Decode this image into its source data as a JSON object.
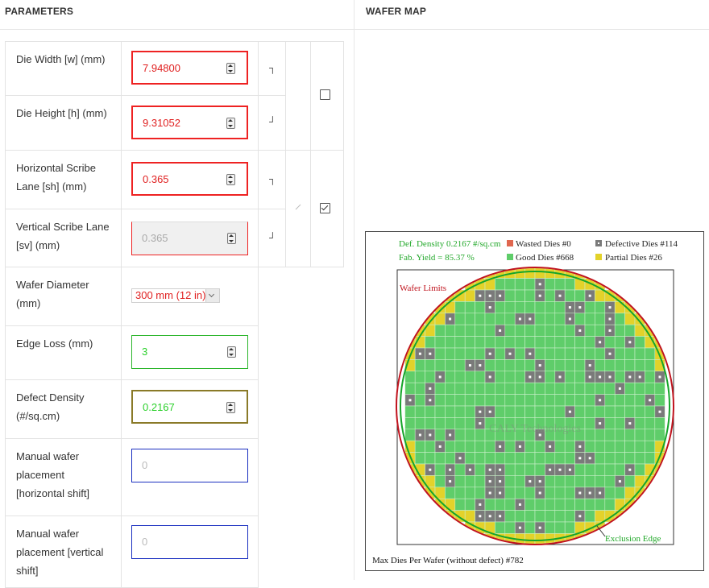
{
  "header": {
    "params_title": "PARAMETERS",
    "map_title": "WAFER MAP"
  },
  "params": {
    "die_width": {
      "label_lines": [
        "Die Width [w] (mm)"
      ],
      "value": "7.94800"
    },
    "die_height": {
      "label_lines": [
        "Die Height [h] (mm)"
      ],
      "value": "9.31052"
    },
    "h_scribe": {
      "label_lines": [
        "Horizontal Scribe",
        "Lane [sh] (mm)"
      ],
      "value": "0.365"
    },
    "v_scribe": {
      "label_lines": [
        "Vertical Scribe Lane",
        "[sv] (mm)"
      ],
      "value": "0.365"
    },
    "wafer_diameter": {
      "label_lines": [
        "Wafer Diameter",
        "(mm)"
      ],
      "selected": "300 mm (12 in)"
    },
    "edge_loss": {
      "label_lines": [
        "Edge Loss (mm)"
      ],
      "value": "3"
    },
    "defect_density": {
      "label_lines": [
        "Defect Density",
        "(#/sq.cm)"
      ],
      "value": "0.2167"
    },
    "h_shift": {
      "label_lines": [
        "Manual wafer",
        "placement",
        "[horizontal shift]"
      ],
      "placeholder": "0"
    },
    "v_shift": {
      "label_lines": [
        "Manual wafer",
        "placement [vertical",
        "shift]"
      ],
      "placeholder": "0"
    },
    "lock_square": {
      "checked": false
    },
    "lock_scribe": {
      "checked": true
    },
    "bracket_top": "┐",
    "bracket_bottom": "┘"
  },
  "map": {
    "legend": {
      "def_density": "Def. Density 0.2167 #/sq.cm",
      "fab_yield": "Fab. Yield = 85.37 %",
      "wasted": "Wasted Dies  #0",
      "good": "Good Dies #668",
      "defective": "Defective Dies  #114",
      "partial": "Partial Dies #26"
    },
    "wafer_limits_label": "Wafer Limits",
    "exclusion_edge_label": "Exclusion Edge",
    "watermark": "CALY Technologies",
    "footer": "Max Dies Per Wafer (without defect) #782",
    "colors": {
      "good": "#5fcd6a",
      "partial": "#e3d22a",
      "defective": "#7a7a7a",
      "wasted": "#e0674f",
      "wafer_limit": "#c0141e",
      "exclusion_edge": "#16a52a",
      "legend_green": "#22a82a",
      "label_red": "#c0141e"
    }
  }
}
